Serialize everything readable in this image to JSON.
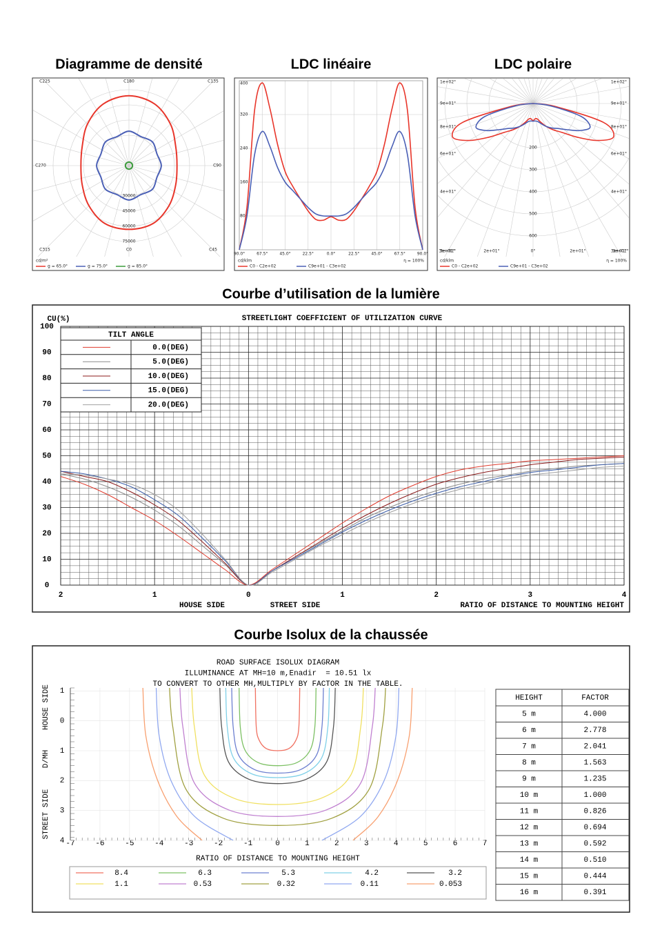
{
  "chart_data": [
    {
      "type": "polar_density",
      "title": "Diagramme de densité",
      "theta": [
        0,
        22.5,
        45,
        67.5,
        90,
        112.5,
        135,
        157.5,
        180,
        202.5,
        225,
        247.5,
        270,
        292.5,
        315,
        337.5
      ],
      "angle_labels": [
        {
          "value": 0,
          "label": "C0"
        },
        {
          "value": 45,
          "label": "C45"
        },
        {
          "value": 90,
          "label": "C90"
        },
        {
          "value": 135,
          "label": "C135"
        },
        {
          "value": 180,
          "label": "C180"
        },
        {
          "value": 225,
          "label": "C225"
        },
        {
          "value": 270,
          "label": "C270"
        },
        {
          "value": 315,
          "label": "C315"
        }
      ],
      "rlim": [
        0,
        75000
      ],
      "rticks": [
        30000,
        45000,
        60000,
        75000
      ],
      "unit": "cd/m²",
      "series": [
        {
          "name": "g = 65.0°",
          "color": "#e8352a",
          "values": [
            63000,
            62000,
            56000,
            50000,
            47500,
            50000,
            58000,
            66000,
            69000,
            66000,
            58000,
            50000,
            47500,
            50000,
            56000,
            62000
          ]
        },
        {
          "name": "g = 75.0°",
          "color": "#4a5fb5",
          "values": [
            34000,
            31000,
            33000,
            30000,
            32000,
            30000,
            33000,
            31000,
            34000,
            31000,
            33000,
            30000,
            32000,
            30000,
            33000,
            31000
          ]
        },
        {
          "name": "g = 85.0°",
          "color": "#3a9a3a",
          "values": [
            3500,
            3500,
            3500,
            3500,
            3500,
            3500,
            3500,
            3500,
            3500,
            3500,
            3500,
            3500,
            3500,
            3500,
            3500,
            3500
          ]
        }
      ]
    },
    {
      "type": "line",
      "title": "LDC linéaire",
      "x": [
        -90,
        -82.5,
        -75,
        -67.5,
        -60,
        -52.5,
        -45,
        -37.5,
        -30,
        -22.5,
        -15,
        -7.5,
        0,
        7.5,
        15,
        22.5,
        30,
        37.5,
        45,
        52.5,
        60,
        67.5,
        75,
        82.5,
        90
      ],
      "xlim": [
        -90,
        90
      ],
      "xticks": [
        {
          "value": -90,
          "label": "90.0°"
        },
        {
          "value": -67.5,
          "label": "67.5°"
        },
        {
          "value": -45,
          "label": "45.0°"
        },
        {
          "value": -22.5,
          "label": "22.5°"
        },
        {
          "value": 0,
          "label": "0.0°"
        },
        {
          "value": 22.5,
          "label": "22.5°"
        },
        {
          "value": 45,
          "label": "45.0°"
        },
        {
          "value": 67.5,
          "label": "67.5°"
        },
        {
          "value": 90,
          "label": "90.0°"
        }
      ],
      "ylim": [
        0,
        400
      ],
      "yticks": [
        80,
        160,
        240,
        320,
        400
      ],
      "unit": "cd/klm",
      "note": "η = 100%",
      "series": [
        {
          "name": "C0 - C2e+02",
          "color": "#e8352a",
          "values": [
            0,
            100,
            330,
            395,
            335,
            250,
            185,
            150,
            120,
            92,
            72,
            70,
            78,
            70,
            72,
            92,
            120,
            150,
            185,
            250,
            335,
            395,
            330,
            100,
            0
          ]
        },
        {
          "name": "C9e+01 - C3e+02",
          "color": "#4a5fb5",
          "values": [
            0,
            80,
            225,
            280,
            245,
            195,
            160,
            140,
            120,
            100,
            85,
            80,
            80,
            80,
            85,
            100,
            120,
            140,
            160,
            195,
            245,
            280,
            225,
            80,
            0
          ]
        }
      ]
    },
    {
      "type": "polar_ldc",
      "title": "LDC polaire",
      "theta": [
        -90,
        -82.5,
        -75,
        -67.5,
        -60,
        -52.5,
        -45,
        -37.5,
        -30,
        -22.5,
        -15,
        -7.5,
        0,
        7.5,
        15,
        22.5,
        30,
        37.5,
        45,
        52.5,
        60,
        67.5,
        75,
        82.5,
        90
      ],
      "rlim": [
        0,
        600
      ],
      "rticks": [
        200,
        300,
        400,
        500,
        600
      ],
      "side_labels": [
        "1e+02°",
        "9e+01°",
        "8e+01°",
        "6e+01°",
        "4e+01°",
        "3e+01°"
      ],
      "bottom_labels": [
        "3e+01°",
        "2e+01°",
        "0°",
        "2e+01°",
        "3e+01°"
      ],
      "unit": "cd/klm",
      "note": "η = 100%",
      "series": [
        {
          "name": "C0 - C2e+02",
          "color": "#e8352a",
          "values": [
            0,
            100,
            330,
            395,
            335,
            250,
            185,
            150,
            120,
            92,
            72,
            70,
            78,
            70,
            72,
            92,
            120,
            150,
            185,
            250,
            335,
            395,
            330,
            100,
            0
          ]
        },
        {
          "name": "C9e+01 - C3e+02",
          "color": "#4a5fb5",
          "values": [
            0,
            80,
            225,
            280,
            245,
            195,
            160,
            140,
            120,
            100,
            85,
            80,
            80,
            80,
            85,
            100,
            120,
            140,
            160,
            195,
            245,
            280,
            225,
            80,
            0
          ]
        }
      ]
    },
    {
      "type": "line",
      "title": "Courbe d’utilisation de la lumière",
      "subtitle": "STREETLIGHT COEFFICIENT OF UTILIZATION CURVE",
      "ylabel": "CU(%)",
      "x": [
        -2,
        -1.75,
        -1.5,
        -1.25,
        -1,
        -0.75,
        -0.5,
        -0.25,
        0,
        0.25,
        0.5,
        0.75,
        1,
        1.25,
        1.5,
        1.75,
        2,
        2.25,
        2.5,
        2.75,
        3,
        3.25,
        3.5,
        3.75,
        4
      ],
      "xlim": [
        -2,
        4
      ],
      "xticks": [
        {
          "value": -2,
          "label": "2"
        },
        {
          "value": -1,
          "label": "1"
        },
        0,
        1,
        2,
        3,
        4
      ],
      "ylim": [
        0,
        100
      ],
      "yticks": [
        0,
        10,
        20,
        30,
        40,
        50,
        60,
        70,
        80,
        90,
        100
      ],
      "xlabels": [
        "HOUSE SIDE",
        "STREET SIDE",
        "RATIO OF DISTANCE TO MOUNTING HEIGHT"
      ],
      "legend_title": "TILT ANGLE",
      "series": [
        {
          "name": "0.0(DEG)",
          "color": "#e03a2c",
          "values": [
            42,
            39,
            35,
            30,
            25,
            19,
            12.5,
            6,
            0,
            6,
            12,
            18,
            24,
            29.5,
            34.5,
            38.5,
            42,
            44.5,
            46,
            47,
            48,
            48.5,
            49,
            49.5,
            50
          ]
        },
        {
          "name": "5.0(DEG)",
          "color": "#8a8a8a",
          "values": [
            43,
            41,
            38,
            34,
            29,
            23,
            15.5,
            8,
            0,
            5.5,
            11,
            16,
            21,
            26,
            30,
            33.5,
            36.5,
            39,
            41,
            42.5,
            44,
            45,
            46,
            46.5,
            47
          ]
        },
        {
          "name": "10.0(DEG)",
          "color": "#8b1a1a",
          "values": [
            44,
            42,
            40,
            36,
            31,
            25,
            17,
            8.5,
            0,
            5.5,
            11,
            16.5,
            22,
            27,
            31.5,
            35.5,
            39,
            41.5,
            43.5,
            45,
            46.5,
            47.5,
            48.5,
            49,
            49.5
          ]
        },
        {
          "name": "15.0(DEG)",
          "color": "#3a5ca8",
          "values": [
            44,
            43,
            41,
            38,
            33,
            27,
            18.5,
            9.5,
            0,
            5.5,
            10.5,
            15.5,
            20.5,
            25,
            29,
            32.5,
            35.5,
            38,
            40,
            42,
            43.5,
            44.5,
            45.5,
            46.5,
            47
          ]
        },
        {
          "name": "20.0(DEG)",
          "color": "#a0a0a0",
          "values": [
            43,
            42.5,
            41,
            39,
            35,
            29,
            20,
            10,
            0,
            5,
            10,
            15,
            19.5,
            24,
            28,
            31.5,
            34.5,
            37,
            39,
            41,
            42.5,
            43.5,
            44.5,
            45.5,
            46
          ]
        }
      ]
    },
    {
      "type": "contour",
      "title": "Courbe Isolux de la chaussée",
      "subtitles": [
        "ROAD SURFACE ISOLUX DIAGRAM",
        "ILLUMINANCE AT MH=10 m,Enadir  = 10.51 lx",
        "TO CONVERT TO OTHER MH,MULTIPLY BY FACTOR IN THE TABLE."
      ],
      "xlim": [
        -7,
        7
      ],
      "xticks": [
        -7,
        -6,
        -5,
        -4,
        -3,
        -2,
        -1,
        0,
        1,
        2,
        3,
        4,
        5,
        6,
        7
      ],
      "ylim": [
        -1.1,
        4
      ],
      "yticks": [
        {
          "value": -1,
          "label": "1"
        },
        0,
        1,
        2,
        3,
        4
      ],
      "ylabels": [
        "STREET SIDE",
        "D/MH",
        "HOUSE SIDE"
      ],
      "xlabel": "RATIO OF DISTANCE TO MOUNTING HEIGHT",
      "series": [
        {
          "name": "8.4",
          "color": "#f07060",
          "x": [
            -0.75,
            -0.72,
            -0.62,
            -0.38,
            0,
            0.38,
            0.62,
            0.72,
            0.75
          ],
          "y": [
            -1.1,
            0.2,
            0.65,
            0.93,
            1,
            0.93,
            0.65,
            0.2,
            -1.1
          ]
        },
        {
          "name": "6.3",
          "color": "#7cc063",
          "x": [
            -1.3,
            -1.26,
            -1.1,
            -0.65,
            0,
            0.65,
            1.1,
            1.26,
            1.3
          ],
          "y": [
            -1.1,
            0.2,
            0.98,
            1.4,
            1.5,
            1.4,
            0.98,
            0.2,
            -1.1
          ]
        },
        {
          "name": "5.3",
          "color": "#6c7fd0",
          "x": [
            -1.55,
            -1.5,
            -1.32,
            -0.78,
            0,
            0.78,
            1.32,
            1.5,
            1.55
          ],
          "y": [
            -1.1,
            0.2,
            1.14,
            1.63,
            1.75,
            1.63,
            1.14,
            0.2,
            -1.1
          ]
        },
        {
          "name": "4.2",
          "color": "#7fd0e8",
          "x": [
            -1.75,
            -1.7,
            -1.49,
            -0.88,
            0,
            0.88,
            1.49,
            1.7,
            1.75
          ],
          "y": [
            -1.1,
            0.2,
            1.24,
            1.77,
            1.9,
            1.77,
            1.24,
            0.2,
            -1.1
          ]
        },
        {
          "name": "3.2",
          "color": "#555555",
          "x": [
            -1.95,
            -1.89,
            -1.66,
            -0.98,
            0,
            0.98,
            1.66,
            1.89,
            1.95
          ],
          "y": [
            -1.1,
            0.2,
            1.37,
            1.95,
            2.1,
            1.95,
            1.37,
            0.2,
            -1.1
          ]
        },
        {
          "name": "1.1",
          "color": "#f0e060",
          "x": [
            -2.9,
            -2.81,
            -2.47,
            -1.45,
            0,
            1.45,
            2.47,
            2.81,
            2.9
          ],
          "y": [
            -1.1,
            0.2,
            1.82,
            2.6,
            2.8,
            2.6,
            1.82,
            0.2,
            -1.1
          ]
        },
        {
          "name": "0.53",
          "color": "#c080d0",
          "x": [
            -3.3,
            -3.2,
            -2.81,
            -1.65,
            0,
            1.65,
            2.81,
            3.2,
            3.3
          ],
          "y": [
            -1.1,
            0.2,
            2.08,
            2.98,
            3.2,
            2.98,
            2.08,
            0.2,
            -1.1
          ]
        },
        {
          "name": "0.32",
          "color": "#a0a040",
          "x": [
            -3.65,
            -3.54,
            -3.1,
            -1.83,
            0,
            1.83,
            3.1,
            3.54,
            3.65
          ],
          "y": [
            -1.1,
            0.2,
            2.28,
            3.26,
            3.5,
            3.26,
            2.28,
            0.2,
            -1.1
          ]
        },
        {
          "name": "0.11",
          "color": "#90a8f0",
          "x": [
            -4.1,
            -4,
            -3.6,
            -2.8,
            -1.5,
            null,
            1.5,
            2.8,
            3.6,
            4,
            4.1
          ],
          "y": [
            -1.1,
            0.5,
            2,
            3.2,
            4,
            null,
            4,
            3.2,
            2,
            0.5,
            -1.1
          ]
        },
        {
          "name": "0.053",
          "color": "#f8a070",
          "x": [
            -4.55,
            -4.45,
            -4.05,
            -3.4,
            -2.55,
            null,
            2.55,
            3.4,
            4.05,
            4.45,
            4.55
          ],
          "y": [
            -1.1,
            0.5,
            2,
            3.2,
            4,
            null,
            4,
            3.2,
            2,
            0.5,
            -1.1
          ]
        }
      ]
    }
  ],
  "table": {
    "columns": [
      "HEIGHT",
      "FACTOR"
    ],
    "rows": [
      [
        "5 m",
        "4.000"
      ],
      [
        "6 m",
        "2.778"
      ],
      [
        "7 m",
        "2.041"
      ],
      [
        "8 m",
        "1.563"
      ],
      [
        "9 m",
        "1.235"
      ],
      [
        "10 m",
        "1.000"
      ],
      [
        "11 m",
        "0.826"
      ],
      [
        "12 m",
        "0.694"
      ],
      [
        "13 m",
        "0.592"
      ],
      [
        "14 m",
        "0.510"
      ],
      [
        "15 m",
        "0.444"
      ],
      [
        "16 m",
        "0.391"
      ]
    ]
  }
}
